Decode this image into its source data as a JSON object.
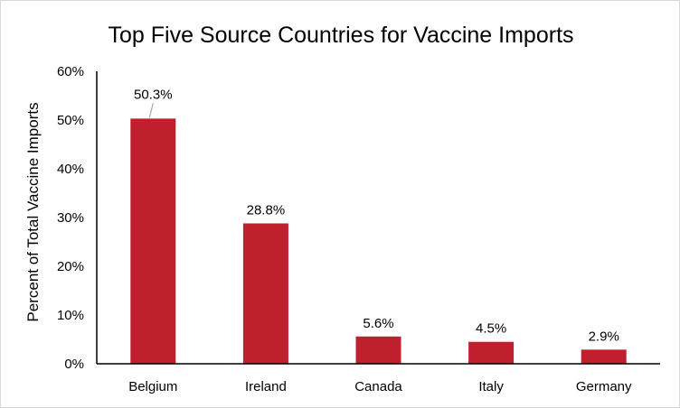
{
  "chart_data": {
    "type": "bar",
    "title": "Top Five Source Countries for Vaccine Imports",
    "xlabel": "",
    "ylabel": "Percent of Total Vaccine Imports",
    "categories": [
      "Belgium",
      "Ireland",
      "Canada",
      "Italy",
      "Germany"
    ],
    "values": [
      50.3,
      28.8,
      5.6,
      4.5,
      2.9
    ],
    "data_labels": [
      "50.3%",
      "28.8%",
      "5.6%",
      "4.5%",
      "2.9%"
    ],
    "ylim": [
      0,
      60
    ],
    "yticks": [
      0,
      10,
      20,
      30,
      40,
      50,
      60
    ],
    "ytick_labels": [
      "0%",
      "10%",
      "20%",
      "30%",
      "40%",
      "50%",
      "60%"
    ],
    "grid": false,
    "legend": "none",
    "bar_color": "#C0202E",
    "axis_color": "#000000"
  }
}
